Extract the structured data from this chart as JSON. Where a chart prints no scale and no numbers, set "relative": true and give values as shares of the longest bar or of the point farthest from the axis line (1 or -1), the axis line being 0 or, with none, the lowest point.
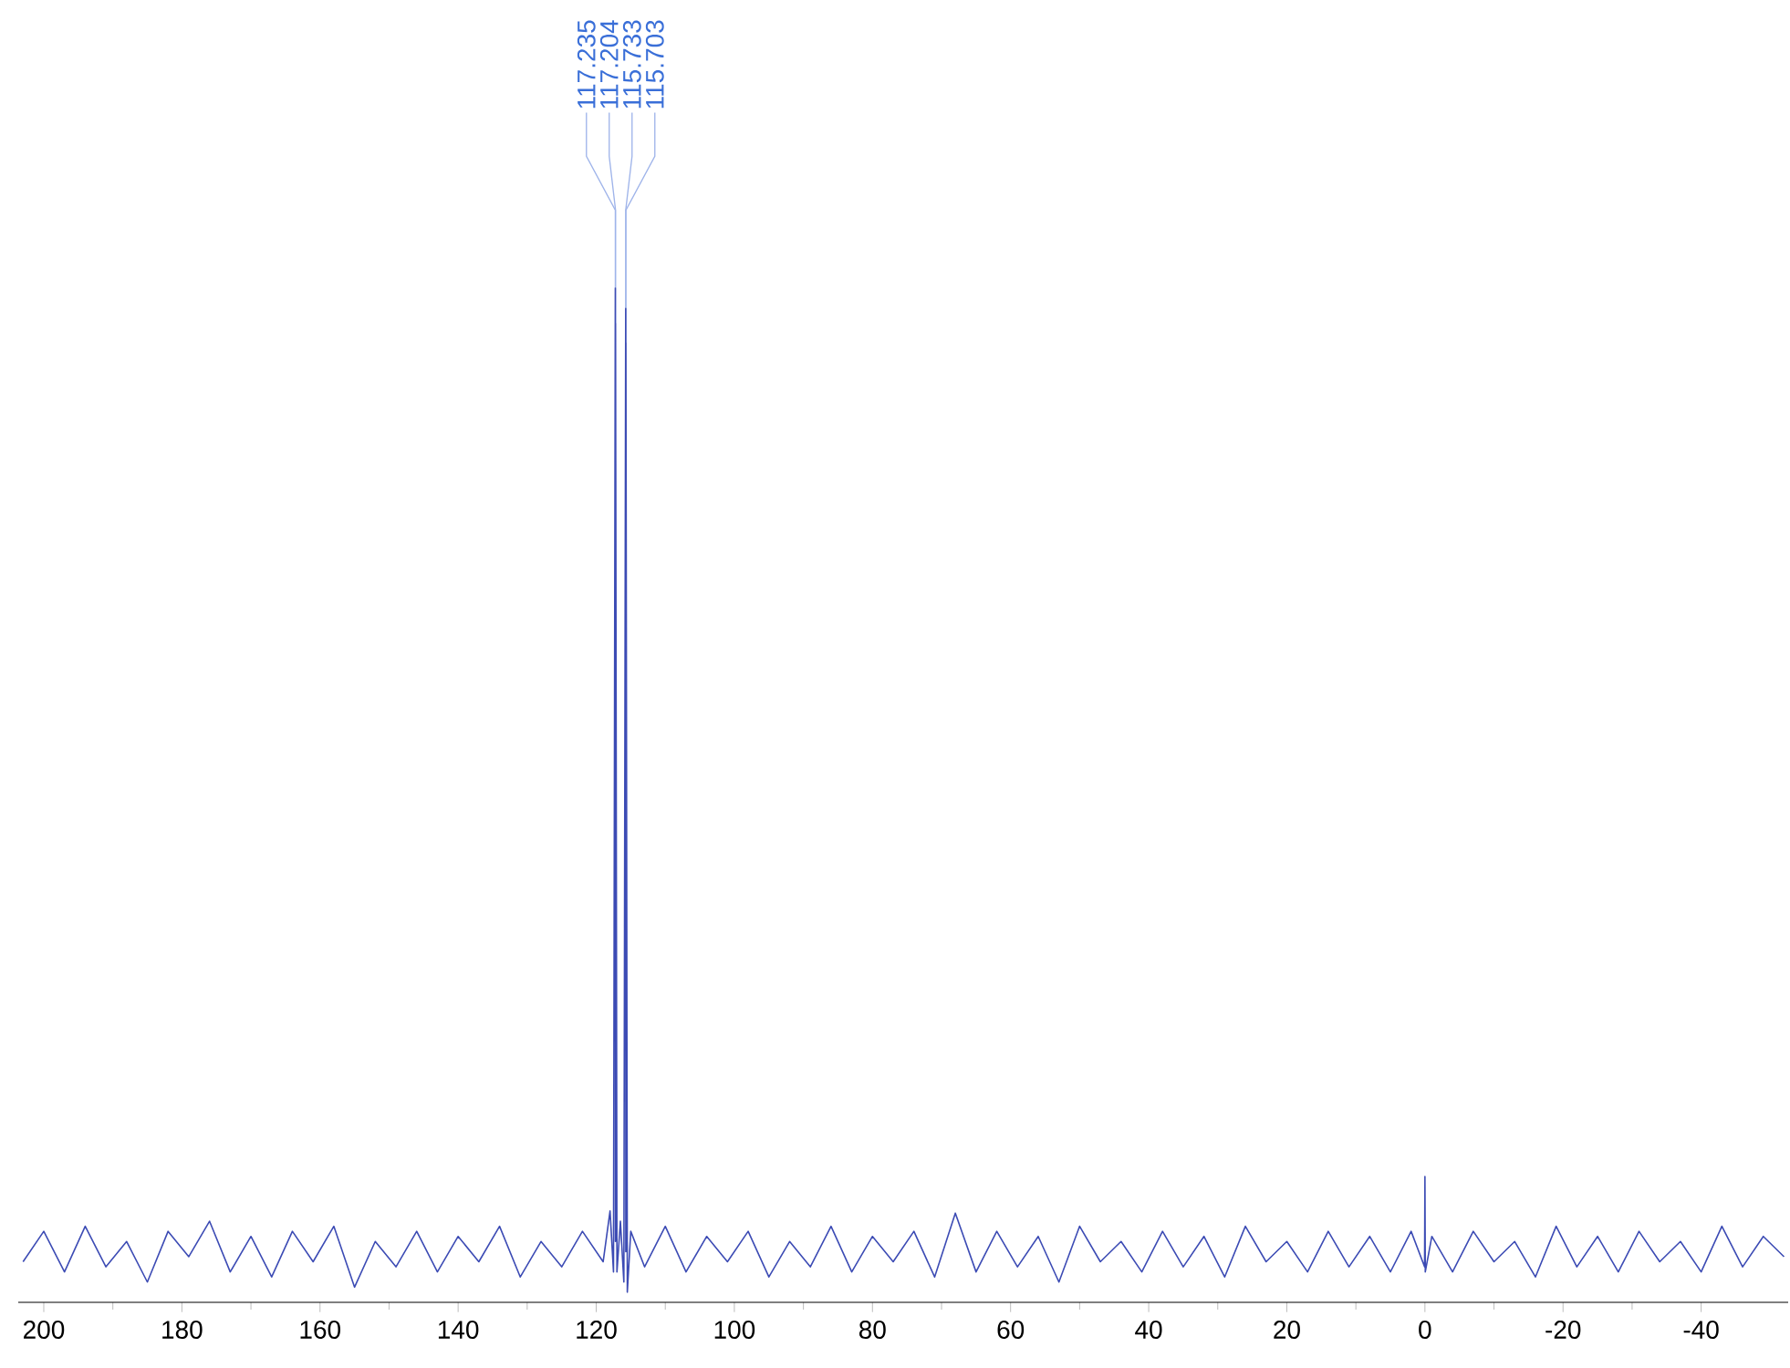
{
  "chart_data": {
    "type": "line",
    "relative": true,
    "color": "#3c4bb4",
    "x": [
      203,
      200,
      197,
      194,
      191,
      188,
      185,
      182,
      179,
      176,
      173,
      170,
      167,
      164,
      161,
      158,
      155,
      152,
      149,
      146,
      143,
      140,
      137,
      134,
      131,
      128,
      125,
      122,
      119,
      118,
      117.5,
      117.235,
      117.22,
      117.204,
      117.0,
      116.5,
      116.0,
      115.733,
      115.72,
      115.703,
      115.5,
      115.0,
      113,
      110,
      107,
      104,
      101,
      98,
      95,
      92,
      89,
      86,
      83,
      80,
      77,
      74,
      71,
      68,
      65,
      62,
      59,
      56,
      53,
      50,
      47,
      44,
      41,
      38,
      35,
      32,
      29,
      26,
      23,
      20,
      17,
      14,
      11,
      8,
      5,
      2,
      0.05,
      0,
      -0.05,
      -1,
      -4,
      -7,
      -10,
      -13,
      -16,
      -19,
      -22,
      -25,
      -28,
      -31,
      -34,
      -37,
      -40,
      -43,
      -46,
      -49,
      -52
    ],
    "values": [
      0.04,
      0.07,
      0.03,
      0.075,
      0.035,
      0.06,
      0.02,
      0.07,
      0.045,
      0.08,
      0.03,
      0.065,
      0.025,
      0.07,
      0.04,
      0.075,
      0.015,
      0.06,
      0.035,
      0.07,
      0.03,
      0.065,
      0.04,
      0.075,
      0.025,
      0.06,
      0.035,
      0.07,
      0.04,
      0.09,
      0.03,
      1.0,
      0.06,
      0.965,
      0.03,
      0.08,
      0.02,
      0.98,
      0.05,
      0.946,
      0.01,
      0.07,
      0.035,
      0.075,
      0.03,
      0.065,
      0.04,
      0.07,
      0.025,
      0.06,
      0.035,
      0.075,
      0.03,
      0.065,
      0.04,
      0.07,
      0.025,
      0.088,
      0.03,
      0.07,
      0.035,
      0.065,
      0.02,
      0.075,
      0.04,
      0.06,
      0.03,
      0.07,
      0.035,
      0.065,
      0.025,
      0.075,
      0.04,
      0.06,
      0.03,
      0.07,
      0.035,
      0.065,
      0.03,
      0.07,
      0.035,
      0.124,
      0.03,
      0.065,
      0.03,
      0.07,
      0.04,
      0.06,
      0.025,
      0.075,
      0.035,
      0.065,
      0.03,
      0.07,
      0.04,
      0.06,
      0.03,
      0.075,
      0.035,
      0.065,
      0.045
    ],
    "xlim": [
      203.7,
      -52.6
    ],
    "xticks": [
      200,
      180,
      160,
      140,
      120,
      100,
      80,
      60,
      40,
      20,
      0,
      -20,
      -40
    ],
    "annotations": [
      {
        "text": "117.235",
        "x": 117.235,
        "y": 1.0
      },
      {
        "text": "117.204",
        "x": 117.204,
        "y": 0.965
      },
      {
        "text": "115.733",
        "x": 115.733,
        "y": 0.98
      },
      {
        "text": "115.703",
        "x": 115.703,
        "y": 0.946
      }
    ]
  }
}
